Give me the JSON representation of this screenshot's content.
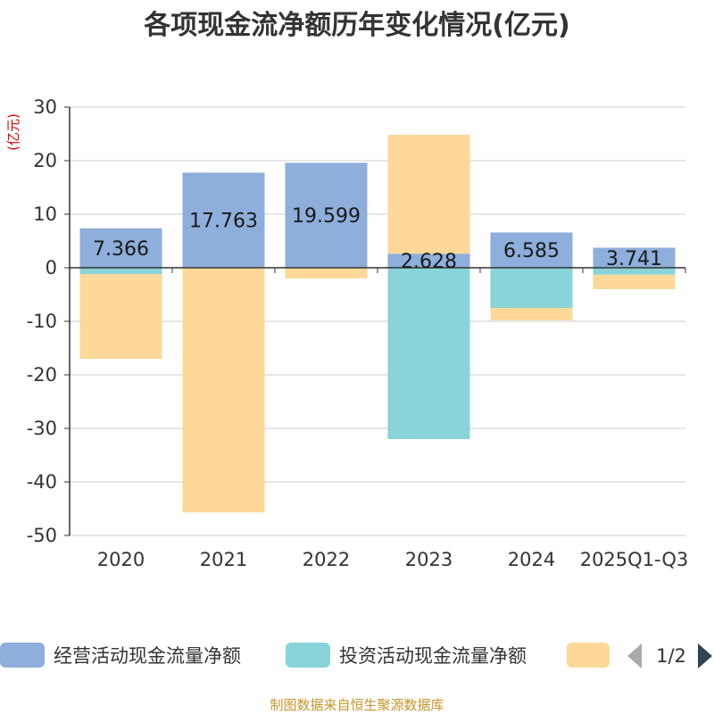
{
  "chart_data": {
    "type": "bar",
    "stacked": true,
    "title": "各项现金流净额历年变化情况(亿元)",
    "ylabel": "(亿元)",
    "ylim": [
      -50,
      30
    ],
    "ytick_step": 10,
    "categories": [
      "2020",
      "2021",
      "2022",
      "2023",
      "2024",
      "2025Q1-Q3"
    ],
    "series": [
      {
        "name": "经营活动现金流量净额",
        "color": "#8eaedb",
        "values": [
          7.366,
          17.763,
          19.599,
          2.628,
          6.585,
          3.741
        ],
        "labels": [
          "7.366",
          "17.763",
          "19.599",
          "2.628",
          "6.585",
          "3.741"
        ]
      },
      {
        "name": "投资活动现金流量净额",
        "color": "#88d4d8",
        "values": [
          -1.2,
          0,
          0,
          -32.0,
          -7.5,
          -1.3
        ]
      },
      {
        "name": "",
        "color": "#fed898",
        "values": [
          -15.8,
          -45.7,
          -2.0,
          22.2,
          -2.3,
          -2.7
        ]
      }
    ],
    "legend": {
      "position": "bottom",
      "page": "1/2"
    },
    "source": "制图数据来自恒生聚源数据库"
  }
}
